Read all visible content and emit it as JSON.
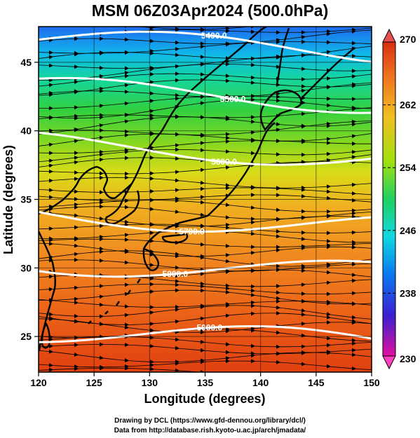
{
  "title": "MSM 06Z03Apr2024 (500.0hPa)",
  "x_axis": {
    "label": "Longitude (degrees)",
    "ticks": [
      "120",
      "125",
      "130",
      "135",
      "140",
      "145",
      "150"
    ],
    "range": [
      120,
      150
    ]
  },
  "y_axis": {
    "label": "Latitude  (degrees)",
    "ticks": [
      "25",
      "30",
      "35",
      "40",
      "45"
    ],
    "range": [
      22.4,
      47.6
    ]
  },
  "colorbar": {
    "ticks": [
      "270",
      "262",
      "254",
      "246",
      "238",
      "230"
    ],
    "range": [
      230,
      270
    ],
    "colors": [
      "#e0109a",
      "#3b1fd0",
      "#0a78f0",
      "#10d8e0",
      "#20d060",
      "#a0e010",
      "#f0c020",
      "#f07a20",
      "#d83010"
    ]
  },
  "contours": [
    {
      "label": "5400.0",
      "lat": 46.2,
      "label_lon": 135.8
    },
    {
      "label": "5500.0",
      "lat": 42.6,
      "label_lon": 137.5
    },
    {
      "label": "5600.0",
      "lat": 38.6,
      "label_lon": 136.7
    },
    {
      "label": "5700.0",
      "lat": 33.5,
      "label_lon": 133.8
    },
    {
      "label": "5800.0",
      "lat": 30.0,
      "label_lon": 132.3
    },
    {
      "label": "5900.0",
      "lat": 25.0,
      "label_lon": 135.4
    }
  ],
  "credits": {
    "line1": "Drawing by DCL (https://www.gfd-dennou.org/library/dcl/)",
    "line2": "Data from http://database.rish.kyoto-u.ac.jp/arch/jmadata/"
  }
}
